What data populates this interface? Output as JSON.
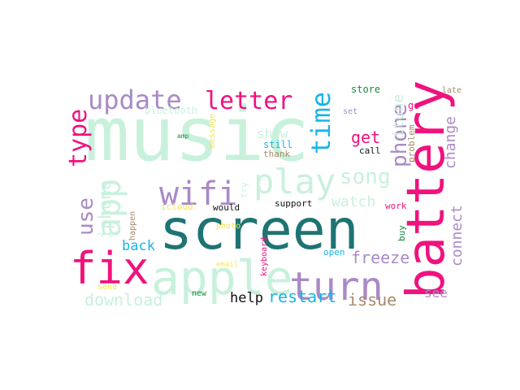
{
  "colors": {
    "mint": "#c8f1dc",
    "teal": "#1f7373",
    "pink": "#f0127e",
    "purple": "#a98ac6",
    "blue": "#19b4e8",
    "tan": "#a68a6a",
    "green": "#178a3e",
    "black": "#111111",
    "yellow": "#f3e64a"
  },
  "words": [
    {
      "text": "music",
      "color": "mint"
    },
    {
      "text": "screen",
      "color": "teal"
    },
    {
      "text": "battery",
      "color": "pink"
    },
    {
      "text": "apple",
      "color": "mint"
    },
    {
      "text": "fix",
      "color": "pink"
    },
    {
      "text": "turn",
      "color": "purple"
    },
    {
      "text": "play",
      "color": "mint"
    },
    {
      "text": "wifi",
      "color": "purple"
    },
    {
      "text": "app",
      "color": "mint"
    },
    {
      "text": "update",
      "color": "purple"
    },
    {
      "text": "letter",
      "color": "pink"
    },
    {
      "text": "time",
      "color": "blue"
    },
    {
      "text": "type",
      "color": "pink"
    },
    {
      "text": "song",
      "color": "mint"
    },
    {
      "text": "phone",
      "color": "purple"
    },
    {
      "text": "use",
      "color": "purple"
    },
    {
      "text": "download",
      "color": "mint"
    },
    {
      "text": "restart",
      "color": "blue"
    },
    {
      "text": "issue",
      "color": "tan"
    },
    {
      "text": "iphone",
      "color": "mint"
    },
    {
      "text": "change",
      "color": "purple"
    },
    {
      "text": "connect",
      "color": "purple"
    },
    {
      "text": "freeze",
      "color": "purple"
    },
    {
      "text": "watch",
      "color": "mint"
    },
    {
      "text": "get",
      "color": "pink"
    },
    {
      "text": "itune",
      "color": "mint"
    },
    {
      "text": "back",
      "color": "blue"
    },
    {
      "text": "help",
      "color": "black"
    },
    {
      "text": "see",
      "color": "purple"
    },
    {
      "text": "show",
      "color": "mint"
    },
    {
      "text": "bluetooth",
      "color": "mint"
    },
    {
      "text": "still",
      "color": "blue"
    },
    {
      "text": "thank",
      "color": "tan"
    },
    {
      "text": "call",
      "color": "black"
    },
    {
      "text": "problem",
      "color": "tan"
    },
    {
      "text": "go",
      "color": "pink"
    },
    {
      "text": "store",
      "color": "green"
    },
    {
      "text": "set",
      "color": "purple"
    },
    {
      "text": "late",
      "color": "tan"
    },
    {
      "text": "amp",
      "color": "green"
    },
    {
      "text": "message",
      "color": "yellow"
    },
    {
      "text": "support",
      "color": "black"
    },
    {
      "text": "work",
      "color": "pink"
    },
    {
      "text": "buy",
      "color": "green"
    },
    {
      "text": "try",
      "color": "mint"
    },
    {
      "text": "icloud",
      "color": "yellow"
    },
    {
      "text": "would",
      "color": "black"
    },
    {
      "text": "happen",
      "color": "tan"
    },
    {
      "text": "keyboard",
      "color": "pink"
    },
    {
      "text": "photo",
      "color": "yellow"
    },
    {
      "text": "open",
      "color": "blue"
    },
    {
      "text": "email",
      "color": "yellow"
    },
    {
      "text": "send",
      "color": "yellow"
    },
    {
      "text": "new",
      "color": "green"
    }
  ]
}
